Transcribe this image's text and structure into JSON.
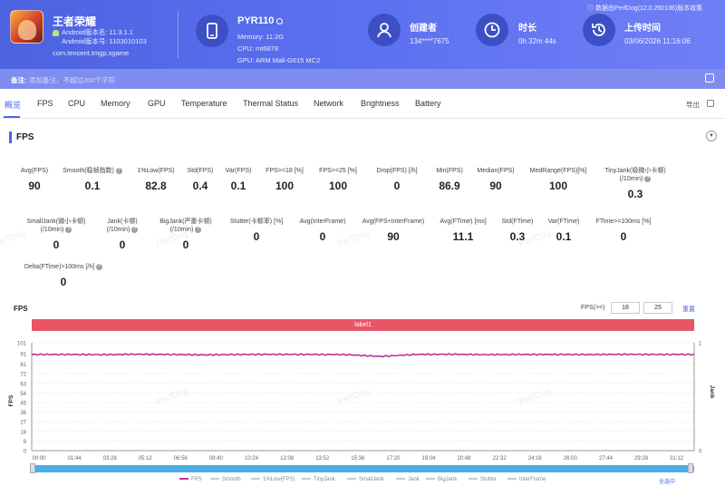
{
  "colors": {
    "header": "#5a6ff0",
    "accent": "#4a63e6",
    "fps_line": "#c0309a",
    "label_bar": "#e85567",
    "scrollbar": "#49aee6"
  },
  "game": {
    "name": "王者荣耀",
    "android_version": "Android版本名: 11.3.1.1",
    "android_code": "Android版本号: 1103010103",
    "package": "com.tencent.tmgp.sgame"
  },
  "device": {
    "name": "PYR110",
    "memory": "Memory: 11.2G",
    "cpu": "CPU: mt6878",
    "gpu": "GPU: ARM Mali-G615 MC2"
  },
  "creator": {
    "label": "创建者",
    "value": "134****7675"
  },
  "duration": {
    "label": "时长",
    "value": "0h 32m 44s"
  },
  "upload": {
    "label": "上传时间",
    "value": "03/06/2026 11:16:06"
  },
  "perfdog_note": "ⓘ 数据由PerfDog(12.0.260136)版本收集",
  "note": {
    "label": "备注:",
    "placeholder": "添加备注，不超过200个字符"
  },
  "tabs": [
    "概览",
    "FPS",
    "CPU",
    "Memory",
    "GPU",
    "Temperature",
    "Thermal Status",
    "Network",
    "Brightness",
    "Battery"
  ],
  "export_label": "导出",
  "section_title": "FPS",
  "metrics_row1": [
    {
      "label": "Avg(FPS)",
      "value": "90"
    },
    {
      "label": "Smooth(稳帧指数)",
      "value": "0.1"
    },
    {
      "label": "1%Low(FPS)",
      "value": "82.8"
    },
    {
      "label": "Std(FPS)",
      "value": "0.4"
    },
    {
      "label": "Var(FPS)",
      "value": "0.1"
    },
    {
      "label": "FPS>=18 [%]",
      "value": "100"
    },
    {
      "label": "FPS>=25 [%]",
      "value": "100"
    },
    {
      "label": "Drop(FPS) [/h]",
      "value": "0"
    },
    {
      "label": "Min(FPS)",
      "value": "86.9"
    },
    {
      "label": "Median(FPS)",
      "value": "90"
    },
    {
      "label": "MedRange(FPS)[%]",
      "value": "100"
    },
    {
      "label": "TinyJank(极微小卡顿)",
      "label2": "(/10min)",
      "value": "0.3"
    }
  ],
  "metrics_row2": [
    {
      "label": "SmallJank(微小卡顿)",
      "label2": "(/10min)",
      "value": "0"
    },
    {
      "label": "Jank(卡顿)",
      "label2": "(/10min)",
      "value": "0"
    },
    {
      "label": "BigJank(严重卡顿)",
      "label2": "(/10min)",
      "value": "0"
    },
    {
      "label": "Stutter(卡顿率) [%]",
      "value": "0"
    },
    {
      "label": "Avg(InterFrame)",
      "value": "0"
    },
    {
      "label": "Avg(FPS+InterFrame)",
      "value": "90"
    },
    {
      "label": "Avg(FTime) [ms]",
      "value": "11.1"
    },
    {
      "label": "Std(FTime)",
      "value": "0.3"
    },
    {
      "label": "Var(FTime)",
      "value": "0.1"
    },
    {
      "label": "FTime>=100ms [%]",
      "value": "0"
    }
  ],
  "metrics_row3": [
    {
      "label": "Delta(FTime)>100ms [/h]",
      "value": "0"
    }
  ],
  "watermark": "PerfDog",
  "chart_header": {
    "title": "FPS",
    "fps_filter_label": "FPS(>=)",
    "threshold1": "18",
    "threshold2": "25",
    "reset_label": "重置"
  },
  "chart_data": {
    "type": "line",
    "label_bar": "label1",
    "ylabel": "FPS",
    "y2label": "Jank",
    "yticks": [
      0,
      9,
      18,
      27,
      36,
      45,
      54,
      63,
      72,
      81,
      91,
      101
    ],
    "ylim": [
      0,
      101
    ],
    "y2ticks": [
      0,
      1
    ],
    "x_ticks": [
      "00:00",
      "01:44",
      "03:28",
      "05:12",
      "06:56",
      "08:40",
      "10:24",
      "12:08",
      "13:52",
      "15:36",
      "17:20",
      "19:04",
      "20:48",
      "22:32",
      "24:16",
      "26:00",
      "27:44",
      "29:28",
      "31:12"
    ],
    "series": [
      {
        "name": "FPS",
        "color": "#c0309a",
        "values": [
          90,
          90,
          89.8,
          90.2,
          90,
          89.6,
          90,
          90.1,
          90,
          89.9,
          88.2,
          90,
          90.2,
          89.8,
          90,
          90,
          89.9,
          90.1,
          90,
          90
        ]
      }
    ],
    "legend": [
      "FPS",
      "Smooth",
      "1%Low(FPS)",
      "TinyJank",
      "SmallJank",
      "Jank",
      "BigJank",
      "Stutter",
      "InterFrame"
    ]
  },
  "zoom_label": "全选中"
}
